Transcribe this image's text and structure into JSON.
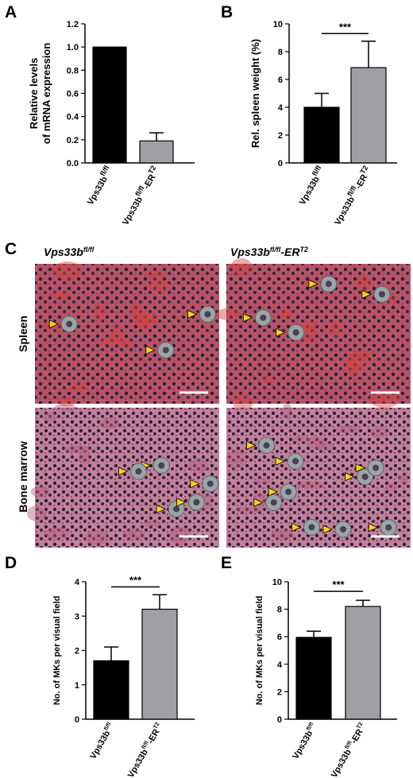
{
  "panels": {
    "A": "A",
    "B": "B",
    "C": "C",
    "D": "D",
    "E": "E"
  },
  "colors": {
    "bar_control": "#000000",
    "bar_ko": "#a0a0a4",
    "spleen_bg": "#b4556a",
    "marrow_bg": "#b96e8a",
    "arrow": "#f2d21b",
    "cell": "#2b1c3a"
  },
  "histology": {
    "col_headers": {
      "base": "Vps33b",
      "ctrl_sup": "fl/fl",
      "ko_sup": "fl/fl",
      "ko_suffix": "-ER",
      "ko_sup2": "T2"
    },
    "rows": [
      "Spleen",
      "Bone marrow"
    ],
    "tiles": [
      {
        "name": "spleen-control",
        "arrows": 3
      },
      {
        "name": "spleen-ert2",
        "arrows": 4
      },
      {
        "name": "marrow-control",
        "arrows": 5
      },
      {
        "name": "marrow-ert2",
        "arrows": 9
      }
    ]
  },
  "chart_data": [
    {
      "panel": "A",
      "type": "bar",
      "categories": [
        "Vps33b fl/fl",
        "Vps33b fl/fl-ER T2"
      ],
      "values": [
        1.0,
        0.19
      ],
      "errors": [
        0,
        0.07
      ],
      "ylabel_lines": [
        "Relative levels",
        "of mRNA expression"
      ],
      "ylim": [
        0,
        1.2
      ],
      "yticks": [
        "0.0",
        "0.2",
        "0.4",
        "0.6",
        "0.8",
        "1.0",
        "1.2"
      ],
      "significance": ""
    },
    {
      "panel": "B",
      "type": "bar",
      "categories": [
        "Vps33b fl/fl",
        "Vps33b fl/fl-ER T2"
      ],
      "values": [
        4.0,
        6.85
      ],
      "errors": [
        1.0,
        1.9
      ],
      "ylabel_lines": [
        "Rel. spleen weight (%)"
      ],
      "ylim": [
        0,
        10
      ],
      "yticks": [
        "0",
        "2",
        "4",
        "6",
        "8",
        "10"
      ],
      "significance": "***"
    },
    {
      "panel": "D",
      "type": "bar",
      "categories": [
        "Vps33b fl/fl",
        "Vps33b fl/fl-ER T2"
      ],
      "values": [
        1.7,
        3.2
      ],
      "errors": [
        0.4,
        0.42
      ],
      "ylabel_lines": [
        "No. of MKs per visual field"
      ],
      "ylim": [
        0,
        4
      ],
      "yticks": [
        "0",
        "1",
        "2",
        "3",
        "4"
      ],
      "significance": "***"
    },
    {
      "panel": "E",
      "type": "bar",
      "categories": [
        "Vps33b fl/fl",
        "Vps33b fl/fl-ER T2"
      ],
      "values": [
        5.95,
        8.2
      ],
      "errors": [
        0.45,
        0.45
      ],
      "ylabel_lines": [
        "No. of MKs per visual field"
      ],
      "ylim": [
        0,
        10
      ],
      "yticks": [
        "0",
        "2",
        "4",
        "6",
        "8",
        "10"
      ],
      "significance": "***"
    }
  ]
}
